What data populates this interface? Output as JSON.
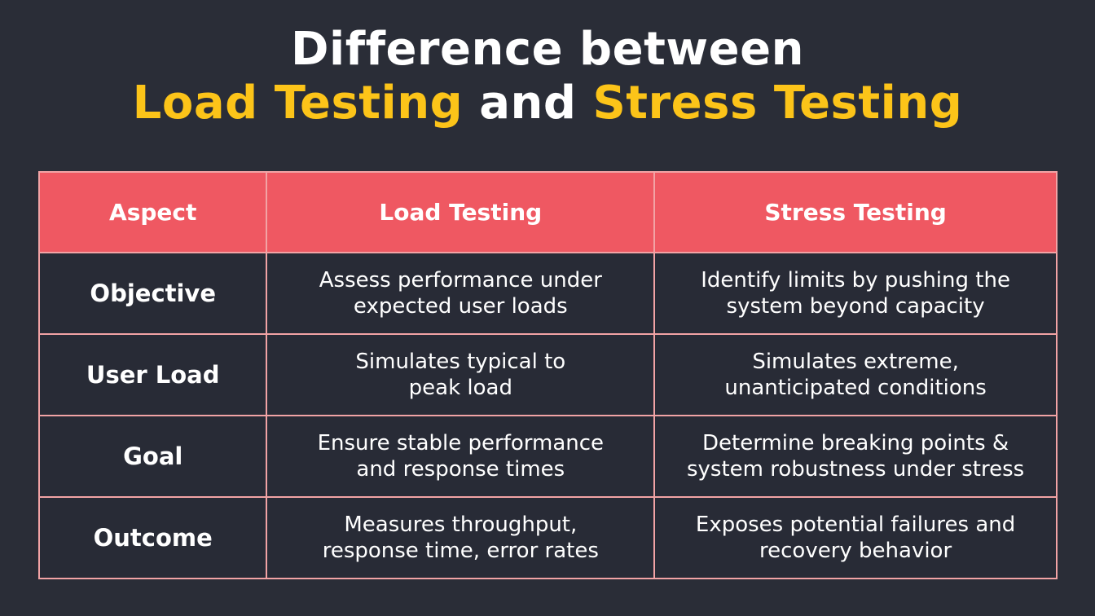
{
  "title": {
    "line1": "Difference between",
    "load_testing": "Load Testing",
    "and": "and",
    "stress_testing": "Stress Testing"
  },
  "colors": {
    "background": "#2a2d37",
    "highlight": "#fcc419",
    "header_bg": "#ef5862",
    "border": "#f2a3a5"
  },
  "table": {
    "headers": [
      "Aspect",
      "Load Testing",
      "Stress Testing"
    ],
    "rows": [
      {
        "aspect": "Objective",
        "load": "Assess performance under\nexpected user loads",
        "stress": "Identify limits by pushing the\nsystem beyond capacity"
      },
      {
        "aspect": "User Load",
        "load": "Simulates typical to\npeak load",
        "stress": "Simulates extreme,\nunanticipated conditions"
      },
      {
        "aspect": "Goal",
        "load": "Ensure stable performance\nand response times",
        "stress": "Determine breaking points &\nsystem robustness under stress"
      },
      {
        "aspect": "Outcome",
        "load": "Measures throughput,\nresponse time, error rates",
        "stress": "Exposes potential failures and\nrecovery behavior"
      }
    ]
  }
}
